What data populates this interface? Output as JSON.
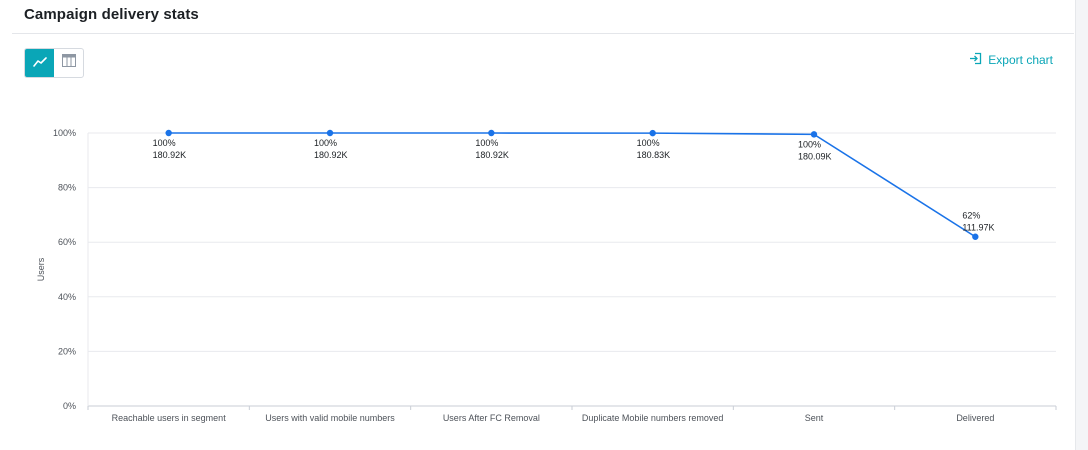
{
  "header": {
    "title": "Campaign delivery stats",
    "export_label": "Export chart"
  },
  "toolbar": {
    "views": [
      {
        "name": "line-view",
        "icon": "line-chart-icon",
        "active": true
      },
      {
        "name": "table-view",
        "icon": "table-icon",
        "active": false
      }
    ],
    "accent_color": "#0aa6b7"
  },
  "chart_data": {
    "type": "line",
    "title": "",
    "xlabel": "",
    "ylabel": "Users",
    "ylim": [
      0,
      100
    ],
    "yticks": [
      "0%",
      "20%",
      "40%",
      "60%",
      "80%",
      "100%"
    ],
    "categories": [
      "Reachable users in segment",
      "Users with valid mobile numbers",
      "Users After FC Removal",
      "Duplicate Mobile numbers removed",
      "Sent",
      "Delivered"
    ],
    "series": [
      {
        "color": "#1a73e8",
        "values": [
          100,
          100,
          100,
          99.95,
          99.5,
          62
        ],
        "percent_labels": [
          "100%",
          "100%",
          "100%",
          "100%",
          "100%",
          "62%"
        ],
        "count_labels": [
          "180.92K",
          "180.92K",
          "180.92K",
          "180.83K",
          "180.09K",
          "111.97K"
        ]
      }
    ],
    "grid": true
  }
}
